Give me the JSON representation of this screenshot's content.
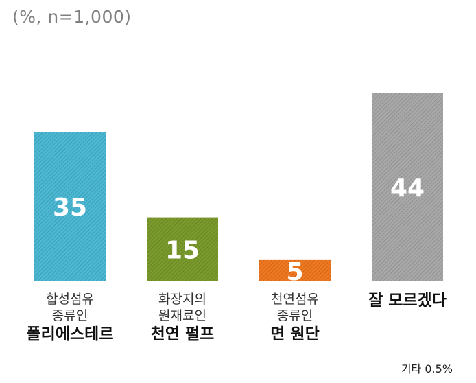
{
  "unit_label": "(%, n=1,000)",
  "footnote": "기타 0.5%",
  "chart_data": {
    "type": "bar",
    "categories": [
      {
        "lines": [
          "합성섬유",
          "종류인"
        ],
        "emphasis": "폴리에스테르"
      },
      {
        "lines": [
          "화장지의",
          "원재료인"
        ],
        "emphasis": "천연 펄프"
      },
      {
        "lines": [
          "천연섬유",
          "종류인"
        ],
        "emphasis": "면 원단"
      },
      {
        "lines": [],
        "emphasis": "잘 모르겠다"
      }
    ],
    "values": [
      35,
      15,
      5,
      44
    ],
    "data_labels": [
      "35",
      "15",
      "5",
      "44"
    ],
    "colors": [
      "#4bb8d4",
      "#7a9a2c",
      "#f07820",
      "#a8a8a8"
    ],
    "ylim": [
      0,
      50
    ],
    "grid": false,
    "legend": "none"
  }
}
